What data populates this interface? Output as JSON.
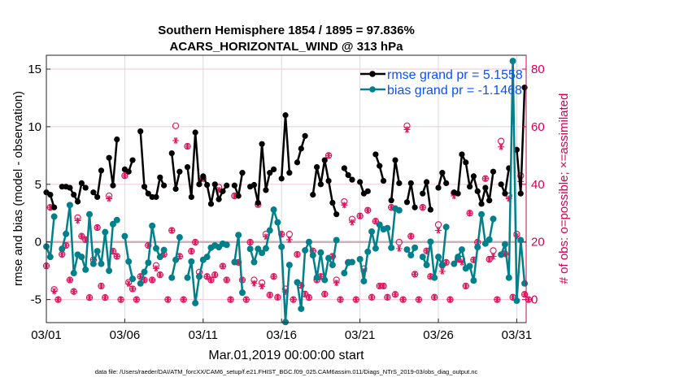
{
  "chart_data": {
    "type": "line",
    "title": [
      "Southern Hemisphere 1854 / 1895 = 97.836%",
      "ACARS_HORIZONTAL_WIND @ 313 hPa"
    ],
    "xlabel": "Mar.01,2019 00:00:00 start",
    "ylabel_left": "rmse and bias (model - observation)",
    "ylabel_right": "# of obs: o=possible; ×=assimilated",
    "footnote": "data file: /Users/raeder/DAI/ATM_forcXX/CAM6_setup/f.e21.FHIST_BGC.f09_025.CAM6assim.011/Diags_NTrS_2019-03/obs_diag_output.nc",
    "x_unit": "6-hour step index since 03/01 00Z",
    "x_step_days": 0.25,
    "xlim_days": [
      1,
      31.6
    ],
    "xticks": [
      {
        "day": 1,
        "label": "03/01"
      },
      {
        "day": 6,
        "label": "03/06"
      },
      {
        "day": 11,
        "label": "03/11"
      },
      {
        "day": 16,
        "label": "03/16"
      },
      {
        "day": 21,
        "label": "03/21"
      },
      {
        "day": 26,
        "label": "03/26"
      },
      {
        "day": 31,
        "label": "03/31"
      }
    ],
    "ylim_left": [
      -7,
      16.2
    ],
    "yticks_left": [
      {
        "v": -5,
        "label": "-5"
      },
      {
        "v": 0,
        "label": "0"
      },
      {
        "v": 5,
        "label": "5"
      },
      {
        "v": 10,
        "label": "10"
      },
      {
        "v": 15,
        "label": "15"
      }
    ],
    "ylim_right": [
      -8,
      84.8
    ],
    "yticks_right": [
      {
        "v": 0,
        "label": "0"
      },
      {
        "v": 20,
        "label": "20"
      },
      {
        "v": 40,
        "label": "40"
      },
      {
        "v": 60,
        "label": "60"
      },
      {
        "v": 80,
        "label": "80"
      }
    ],
    "legend_position": "top-right",
    "series": [
      {
        "name": "rmse grand pr = 5.1558",
        "color": "#000000",
        "values": [
          4.3,
          4.1,
          3.0,
          null,
          4.8,
          4.8,
          4.7,
          4.1,
          3.5,
          5.1,
          4.7,
          null,
          4.3,
          3.9,
          6.2,
          null,
          7.3,
          4.9,
          8.9,
          null,
          6.3,
          6.1,
          7.1,
          null,
          9.6,
          4.8,
          4.2,
          3.9,
          3.9,
          5.6,
          4.9,
          null,
          7.7,
          4.6,
          6.1,
          null,
          6.5,
          3.9,
          9.5,
          5.0,
          5.7,
          4.95,
          3.3,
          5.0,
          3.7,
          4.4,
          4.9,
          null,
          4.9,
          4.0,
          6.0,
          null,
          4.8,
          4.95,
          3.4,
          8.5,
          4.5,
          6.0,
          6.3,
          null,
          5.5,
          11.0,
          6.0,
          null,
          6.9,
          8.1,
          9.2,
          null,
          4.1,
          6.5,
          5.0,
          7.1,
          5.3,
          3.4,
          2.4,
          null,
          6.4,
          5.8,
          5.4,
          null,
          5.2,
          4.2,
          4.4,
          null,
          7.6,
          6.6,
          5.3,
          null,
          3.6,
          7.1,
          5.1,
          null,
          3.45,
          5.1,
          3.0,
          null,
          4.2,
          5.2,
          2.8,
          null,
          4.7,
          6.0,
          5.1,
          null,
          4.3,
          4.2,
          7.6,
          6.9,
          4.8,
          5.7,
          4.4,
          3.3,
          4.7,
          3.6,
          6.1,
          null,
          5.0,
          4.2,
          6.4,
          null,
          8.0,
          4.2,
          13.4
        ]
      },
      {
        "name": "bias grand pr = -1.1468",
        "color": "#00808a",
        "values": [
          -0.4,
          -1.3,
          2.2,
          null,
          -0.6,
          0.7,
          3.2,
          -2.7,
          -1.1,
          -1.3,
          -2.4,
          2.4,
          -1.9,
          -0.8,
          -1.9,
          0.85,
          -2.5,
          1.55,
          1.9,
          null,
          0.5,
          -1.7,
          -3.2,
          null,
          -3.6,
          -2.6,
          -1.8,
          1.4,
          -0.56,
          -1.3,
          -0.7,
          null,
          -3.1,
          -1.55,
          0.4,
          null,
          -3.1,
          -1.7,
          -5.3,
          -3.0,
          -1.55,
          -1.3,
          -0.5,
          -0.3,
          -0.45,
          -0.15,
          -0.25,
          null,
          -1.75,
          0.6,
          -4.4,
          null,
          -0.6,
          -1.75,
          -0.6,
          -0.95,
          -0.56,
          1.0,
          2.8,
          1.7,
          -0.42,
          -6.95,
          -2.0,
          null,
          -3.5,
          -5.8,
          -0.73,
          0,
          -1.15,
          -3.1,
          -0.92,
          -3.3,
          -1.4,
          -2.0,
          0.16,
          null,
          -2.7,
          -1.8,
          -1.75,
          null,
          -1.5,
          -3.4,
          -0.85,
          0.9,
          -0.56,
          1.5,
          1.1,
          1.2,
          -0.5,
          2.9,
          2.75,
          null,
          -0.66,
          -1.15,
          -0.5,
          null,
          -1.3,
          -2.0,
          0.02,
          -3.1,
          -1.3,
          -2.0,
          1.3,
          null,
          -1.9,
          -1.3,
          -0.66,
          -2.3,
          -2.1,
          -3.35,
          -0.45,
          2.4,
          -0.14,
          0.2,
          2.0,
          null,
          -1.1,
          -0.2,
          -3.1,
          15.7,
          -5.1,
          0.16,
          -3.6
        ]
      }
    ],
    "obs_counts": {
      "color": "#e0105a",
      "columns": [
        "index",
        "possible",
        "assimilated"
      ],
      "rows": [
        [
          0,
          11.7,
          11.7
        ],
        [
          1,
          32,
          32
        ],
        [
          2,
          3.5,
          2.9
        ],
        [
          3,
          0,
          0
        ],
        [
          4,
          15.7,
          15.7
        ],
        [
          5,
          18.8,
          18.8
        ],
        [
          6,
          6.8,
          6.8
        ],
        [
          7,
          2.8,
          2.8
        ],
        [
          8,
          28.4,
          27.4
        ],
        [
          9,
          22,
          22
        ],
        [
          10,
          20.8,
          20.8
        ],
        [
          11,
          0.7,
          0.7
        ],
        [
          12,
          13.8,
          13.8
        ],
        [
          13,
          25,
          25
        ],
        [
          14,
          4.7,
          4.7
        ],
        [
          15,
          0.7,
          0.7
        ],
        [
          16,
          36,
          35
        ],
        [
          17,
          16.8,
          16.8
        ],
        [
          18,
          15,
          15
        ],
        [
          19,
          0,
          0
        ],
        [
          20,
          43,
          43
        ],
        [
          21,
          6,
          5.5
        ],
        [
          22,
          3.7,
          3.7
        ],
        [
          23,
          0,
          0
        ],
        [
          24,
          8,
          8
        ],
        [
          25,
          6.8,
          6.8
        ],
        [
          26,
          18.8,
          18.8
        ],
        [
          27,
          6.8,
          6.8
        ],
        [
          28,
          11.8,
          10.8
        ],
        [
          29,
          8.6,
          8.6
        ],
        [
          30,
          15.7,
          15.7
        ],
        [
          31,
          0,
          0
        ],
        [
          32,
          24,
          24
        ],
        [
          33,
          60.3,
          55.2
        ],
        [
          34,
          15,
          15
        ],
        [
          35,
          0,
          0
        ],
        [
          36,
          53.2,
          53.2
        ],
        [
          37,
          16.8,
          16.8
        ],
        [
          38,
          19.9,
          19.9
        ],
        [
          39,
          9.5,
          8.2
        ],
        [
          40,
          42,
          42
        ],
        [
          41,
          8,
          8
        ],
        [
          42,
          6.8,
          6.8
        ],
        [
          43,
          8.6,
          8.6
        ],
        [
          44,
          39,
          38
        ],
        [
          45,
          11.6,
          11.6
        ],
        [
          46,
          6.8,
          6.8
        ],
        [
          47,
          0,
          0
        ],
        [
          48,
          36,
          36
        ],
        [
          49,
          12.9,
          12.9
        ],
        [
          50,
          6.8,
          6.8
        ],
        [
          51,
          0,
          0
        ],
        [
          52,
          19.9,
          19.9
        ],
        [
          53,
          6.8,
          5.6
        ],
        [
          54,
          33,
          33
        ],
        [
          55,
          5.8,
          4.6
        ],
        [
          56,
          22.7,
          21.8
        ],
        [
          57,
          1.6,
          1.6
        ],
        [
          58,
          8,
          8
        ],
        [
          59,
          0.8,
          0.8
        ],
        [
          60,
          22.7,
          22.7
        ],
        [
          61,
          3.7,
          2.7
        ],
        [
          62,
          22.7,
          20.8
        ],
        [
          63,
          0,
          0
        ],
        [
          64,
          15.7,
          15.7
        ],
        [
          65,
          4.9,
          4.9
        ],
        [
          66,
          1.9,
          1.9
        ],
        [
          67,
          0.7,
          0.7
        ],
        [
          68,
          16.9,
          16.9
        ],
        [
          69,
          6.8,
          6.8
        ],
        [
          70,
          8,
          8
        ],
        [
          71,
          1.9,
          1.9
        ],
        [
          72,
          50,
          50
        ],
        [
          73,
          15,
          15
        ],
        [
          74,
          6.8,
          5.8
        ],
        [
          75,
          0,
          0
        ],
        [
          76,
          34,
          32.8
        ],
        [
          77,
          12.9,
          12.9
        ],
        [
          78,
          27.9,
          26.8
        ],
        [
          79,
          0,
          0
        ],
        [
          80,
          29,
          29
        ],
        [
          81,
          10.7,
          9.8
        ],
        [
          82,
          31,
          31
        ],
        [
          83,
          0.8,
          0.8
        ],
        [
          84,
          27.2,
          27.2
        ],
        [
          85,
          4.7,
          4.7
        ],
        [
          86,
          4.7,
          4.7
        ],
        [
          87,
          0.8,
          0.8
        ],
        [
          88,
          32,
          32
        ],
        [
          89,
          1.8,
          1.8
        ],
        [
          90,
          19.9,
          17.7
        ],
        [
          91,
          0,
          0
        ],
        [
          92,
          60.3,
          59
        ],
        [
          93,
          22,
          22
        ],
        [
          94,
          8.8,
          8.8
        ],
        [
          95,
          0,
          0
        ],
        [
          96,
          32,
          32
        ],
        [
          97,
          16.9,
          16.9
        ],
        [
          98,
          8,
          8
        ],
        [
          99,
          0.8,
          0.8
        ],
        [
          100,
          26,
          24
        ],
        [
          101,
          11.9,
          9.8
        ],
        [
          102,
          12.9,
          12.9
        ],
        [
          103,
          0,
          0
        ],
        [
          104,
          37,
          36
        ],
        [
          105,
          14,
          14
        ],
        [
          106,
          14,
          12.9
        ],
        [
          107,
          4.7,
          4.7
        ],
        [
          108,
          30,
          30
        ],
        [
          109,
          13.8,
          13.8
        ],
        [
          110,
          19.9,
          19.9
        ],
        [
          112,
          42,
          42
        ],
        [
          113,
          14,
          14
        ],
        [
          114,
          17,
          15
        ],
        [
          115,
          0,
          0
        ],
        [
          116,
          55,
          53
        ],
        [
          117,
          15.9,
          15.9
        ],
        [
          118,
          36,
          35
        ],
        [
          119,
          0.8,
          0.8
        ],
        [
          120,
          22.7,
          22
        ],
        [
          121,
          43,
          41
        ],
        [
          122,
          1.8,
          1.8
        ],
        [
          123,
          0,
          0
        ]
      ]
    }
  },
  "colors": {
    "legend_text": "#0a50ff",
    "right_axis": "#d6004e",
    "grid_right": "#f2c6d4",
    "grid_x": "#d9d9d9",
    "zero_line": "#c8b4b8"
  }
}
